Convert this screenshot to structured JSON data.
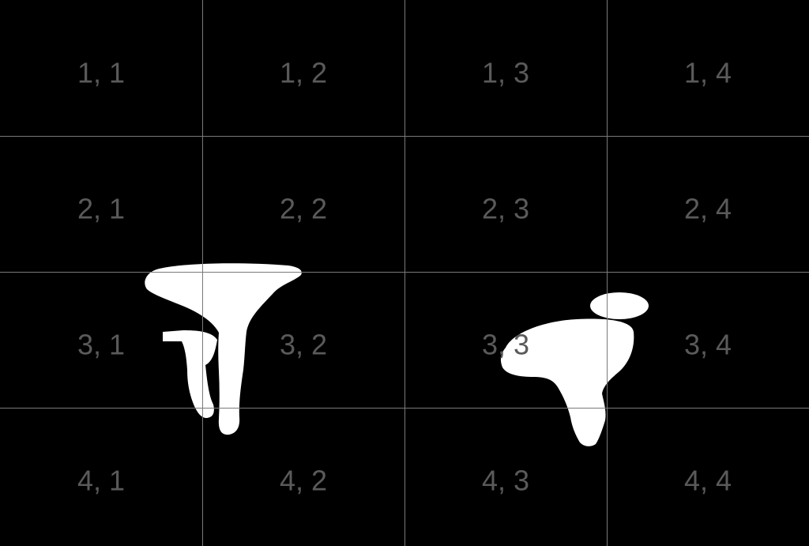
{
  "mask_color": "#ffffff",
  "background_color": "#000000",
  "gridline_color": "#7a7a7a",
  "label_color": "#5a5a5a",
  "grid": {
    "rows": 4,
    "cols": 4,
    "cells": [
      [
        "1, 1",
        "1, 2",
        "1, 3",
        "1, 4"
      ],
      [
        "2, 1",
        "2, 2",
        "2, 3",
        "2, 4"
      ],
      [
        "3, 1",
        "3, 2",
        "3, 3",
        "3, 4"
      ],
      [
        "4, 1",
        "4, 2",
        "4, 3",
        "4, 4"
      ]
    ]
  }
}
